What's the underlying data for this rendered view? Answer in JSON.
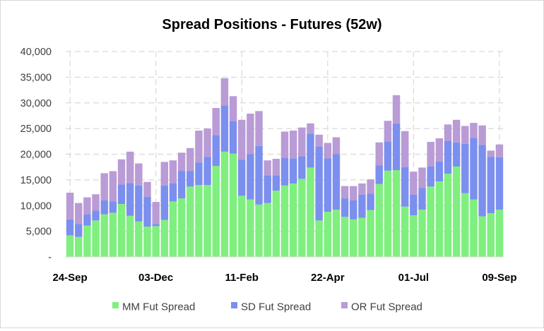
{
  "chart_data": {
    "type": "bar",
    "stacked": true,
    "title": "Spread Positions  - Futures (52w)",
    "xlabel": "",
    "ylabel": "",
    "ylim": [
      0,
      40000
    ],
    "yticks": [
      0,
      5000,
      10000,
      15000,
      20000,
      25000,
      30000,
      35000,
      40000
    ],
    "ytick_labels": [
      "-",
      "5,000",
      "10,000",
      "15,000",
      "20,000",
      "25,000",
      "30,000",
      "35,000",
      "40,000"
    ],
    "xtick_labels": [
      {
        "index": 0,
        "label": "24-Sep"
      },
      {
        "index": 10,
        "label": "03-Dec"
      },
      {
        "index": 20,
        "label": "11-Feb"
      },
      {
        "index": 30,
        "label": "22-Apr"
      },
      {
        "index": 40,
        "label": "01-Jul"
      },
      {
        "index": 50,
        "label": "09-Sep"
      }
    ],
    "grid": true,
    "legend_position": "bottom",
    "colors": {
      "MM": "#7fef7f",
      "SD": "#7b8fee",
      "OR": "#b99bd6",
      "grid": "#d9d9d9"
    },
    "series": [
      {
        "name": "MM  Fut Spread",
        "key": "MM",
        "values": [
          4200,
          3900,
          6100,
          7100,
          8300,
          8600,
          10300,
          8000,
          6900,
          5900,
          6000,
          7200,
          10800,
          11400,
          13700,
          14000,
          14000,
          17700,
          20500,
          20100,
          11900,
          11200,
          10200,
          10500,
          12900,
          13900,
          14300,
          15200,
          17400,
          7100,
          8800,
          9200,
          7800,
          7300,
          7600,
          9100,
          14200,
          16800,
          16900,
          9800,
          8100,
          9200,
          13700,
          14700,
          16200,
          17600,
          12400,
          11200,
          7900,
          8500,
          9200
        ]
      },
      {
        "name": "SD  Fut Spread",
        "key": "SD",
        "values": [
          3100,
          2500,
          2200,
          1900,
          2700,
          2200,
          3800,
          6400,
          7000,
          5800,
          400,
          6700,
          3500,
          5300,
          3000,
          4400,
          5500,
          6000,
          9000,
          6300,
          7000,
          8800,
          11400,
          5400,
          3000,
          5400,
          4900,
          4400,
          6600,
          14400,
          10400,
          10800,
          3600,
          3700,
          4500,
          3200,
          3600,
          5700,
          9100,
          7700,
          4000,
          4200,
          3900,
          3900,
          6400,
          4700,
          9600,
          12000,
          13900,
          11000,
          10200
        ]
      },
      {
        "name": "OR   Fut Spread",
        "key": "OR",
        "values": [
          5200,
          4100,
          3300,
          3200,
          5300,
          5900,
          4900,
          6100,
          4300,
          2900,
          4300,
          4600,
          4500,
          3600,
          4500,
          6200,
          5500,
          5300,
          5300,
          4900,
          7800,
          7900,
          6800,
          2900,
          3200,
          5100,
          5400,
          5600,
          2000,
          2300,
          3000,
          3300,
          2400,
          2800,
          2200,
          2800,
          4500,
          4000,
          5500,
          7000,
          4500,
          4000,
          4800,
          4500,
          3200,
          4400,
          3500,
          2900,
          3800,
          1200,
          2500
        ]
      }
    ]
  }
}
